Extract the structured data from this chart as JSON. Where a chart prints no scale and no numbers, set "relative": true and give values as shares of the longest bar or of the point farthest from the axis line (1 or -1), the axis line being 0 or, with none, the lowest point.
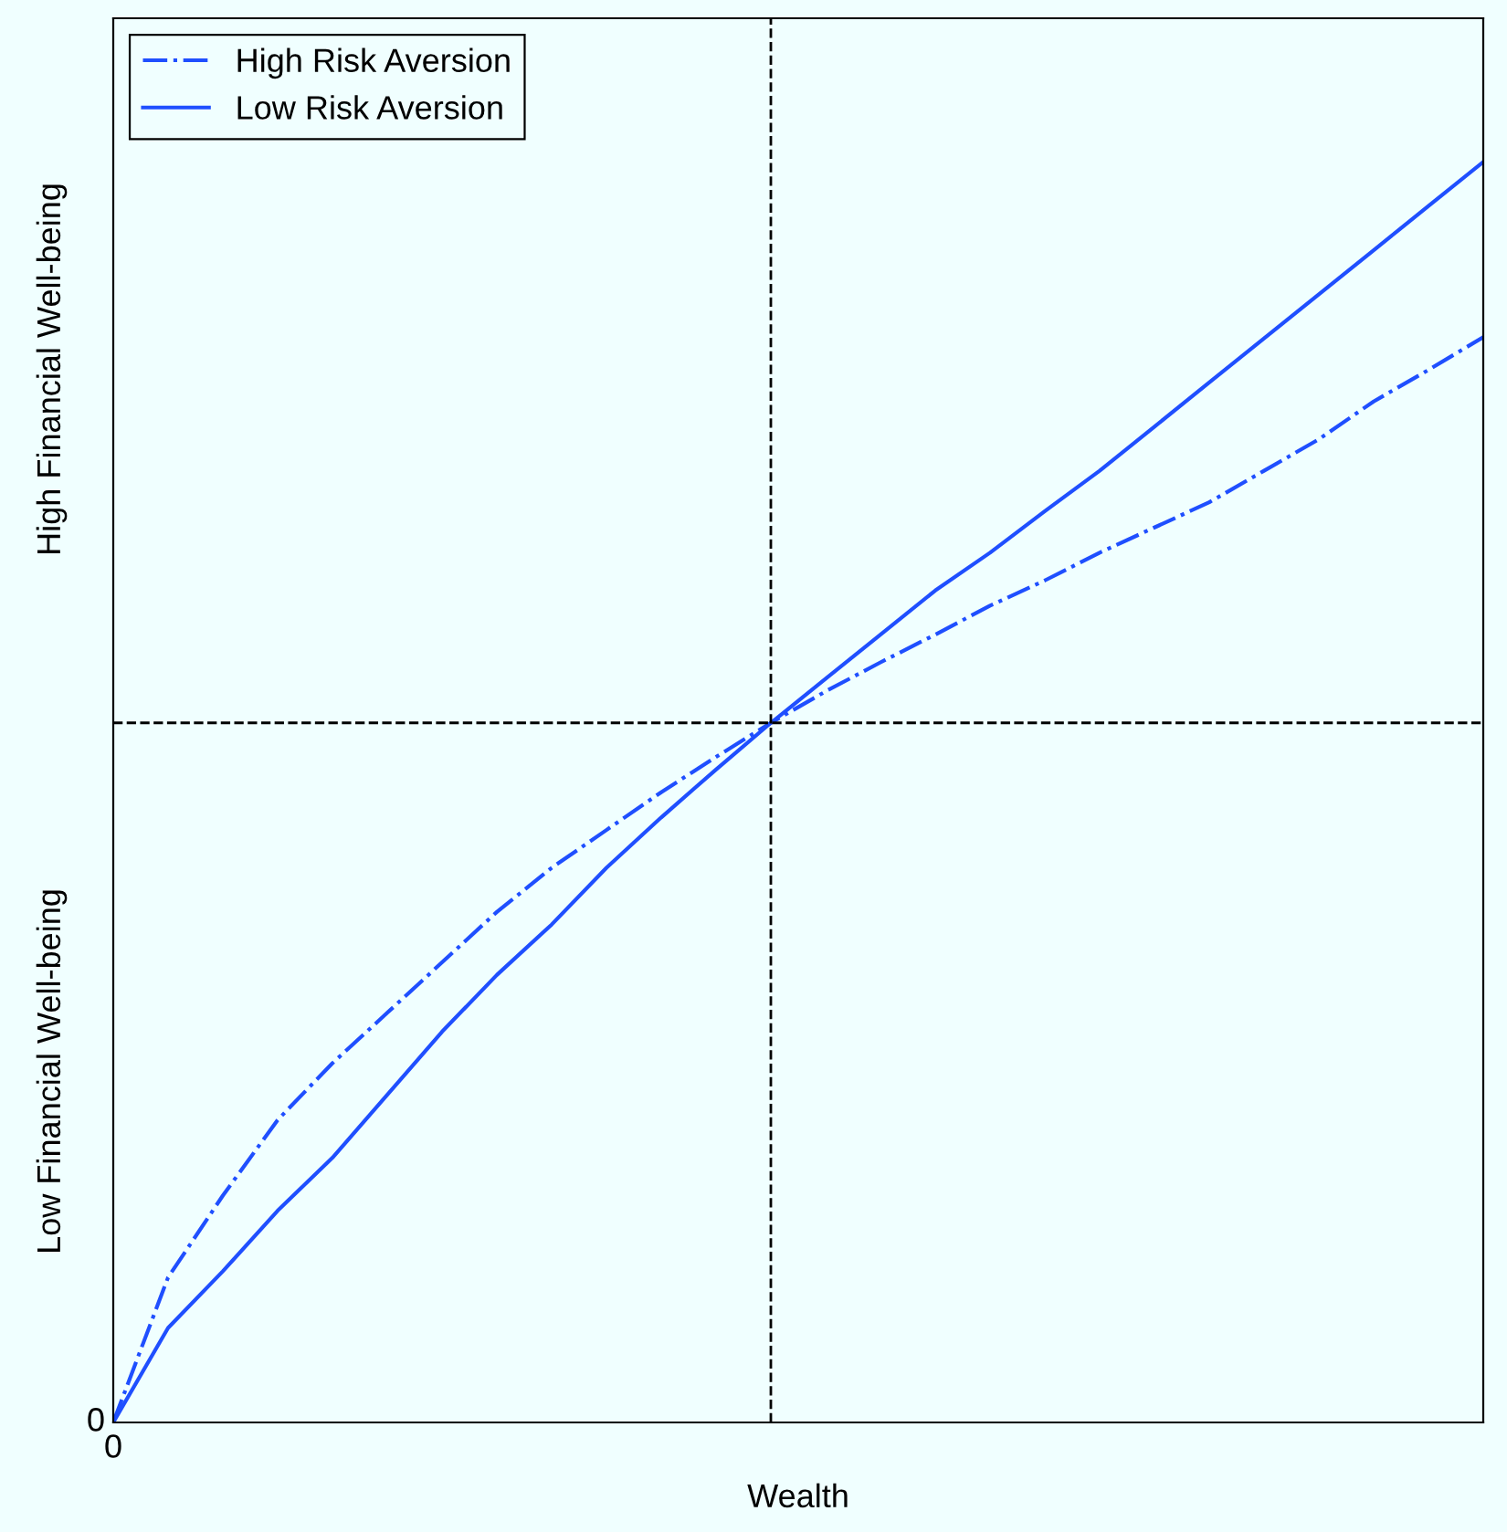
{
  "chart_data": {
    "type": "line",
    "relative": true,
    "xlabel": "Wealth",
    "categories": [
      null,
      null,
      null,
      null,
      null,
      null,
      null,
      null,
      null,
      null,
      null,
      null,
      null,
      null,
      null,
      null,
      null,
      null,
      null,
      null,
      null,
      null,
      null,
      null,
      null,
      null
    ],
    "annotations": [
      "0",
      "0",
      "Low Financial Well-being",
      "High Financial Well-being"
    ],
    "series": [
      {
        "name": "High Risk Aversion",
        "color": "#1f4fff",
        "line_style": "dashdot",
        "values": [
          0,
          0.115,
          0.18,
          0.24,
          0.285,
          0.325,
          0.365,
          0.405,
          0.44,
          0.47,
          0.5,
          0.528,
          0.555,
          0.58,
          0.603,
          0.625,
          0.648,
          0.668,
          0.69,
          0.71,
          0.73,
          0.755,
          0.78,
          0.81,
          0.835,
          0.861
        ]
      },
      {
        "name": "Low Risk Aversion",
        "color": "#1f4fff",
        "line_style": "solid",
        "values": [
          0,
          0.075,
          0.12,
          0.168,
          0.21,
          0.26,
          0.31,
          0.355,
          0.395,
          0.44,
          0.48,
          0.518,
          0.555,
          0.59,
          0.625,
          0.66,
          0.69,
          0.723,
          0.755,
          0.79,
          0.825,
          0.86,
          0.895,
          0.93,
          0.965,
          1
        ]
      }
    ],
    "ref_lines": [
      {
        "axis": "y",
        "value": 0.555,
        "color": "#000000",
        "line_style": "dashed"
      }
    ],
    "legend": "top left",
    "marker": "none"
  }
}
